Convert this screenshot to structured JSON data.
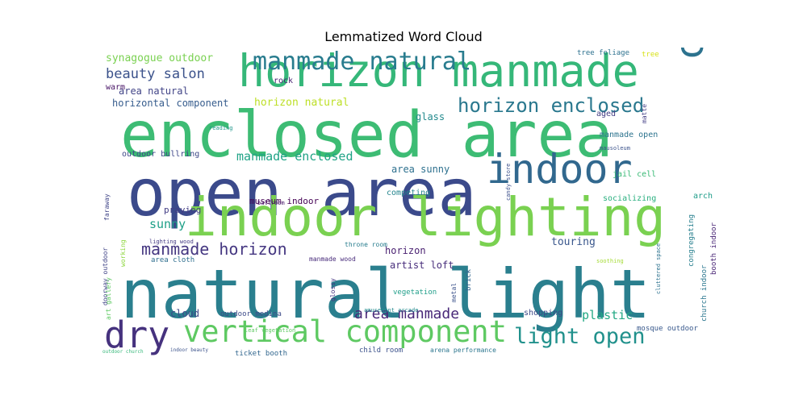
{
  "chart_data": {
    "type": "wordcloud",
    "title": "Lemmatized Word Cloud",
    "words": [
      {
        "text": "natural light",
        "weight": 100,
        "color": "#2a7f8e",
        "orient": "h"
      },
      {
        "text": "open area",
        "weight": 96,
        "color": "#3b4a8b",
        "orient": "h"
      },
      {
        "text": "enclosed area",
        "weight": 94,
        "color": "#3dbc74",
        "orient": "h"
      },
      {
        "text": "indoor lighting",
        "weight": 80,
        "color": "#7ad151",
        "orient": "h"
      },
      {
        "text": "horizon manmade",
        "weight": 66,
        "color": "#35b779",
        "orient": "h"
      },
      {
        "text": "indoor",
        "weight": 60,
        "color": "#31688e",
        "orient": "h"
      },
      {
        "text": "cloth",
        "weight": 58,
        "color": "#2c728e",
        "orient": "v"
      },
      {
        "text": "dry",
        "weight": 54,
        "color": "#46327e",
        "orient": "h"
      },
      {
        "text": "vertical component",
        "weight": 44,
        "color": "#5ec962",
        "orient": "h"
      },
      {
        "text": "manmade natural",
        "weight": 36,
        "color": "#287c8e",
        "orient": "h"
      },
      {
        "text": "light open",
        "weight": 32,
        "color": "#21918c",
        "orient": "h"
      },
      {
        "text": "horizon enclosed",
        "weight": 28,
        "color": "#2a788e",
        "orient": "h"
      },
      {
        "text": "manmade horizon",
        "weight": 24,
        "color": "#453781",
        "orient": "h"
      },
      {
        "text": "area manmade",
        "weight": 22,
        "color": "#482878",
        "orient": "h"
      },
      {
        "text": "beauty salon",
        "weight": 20,
        "color": "#3b528b",
        "orient": "h"
      },
      {
        "text": "manmade enclosed",
        "weight": 18,
        "color": "#20a386",
        "orient": "h"
      },
      {
        "text": "synagogue outdoor",
        "weight": 15,
        "color": "#7ad151",
        "orient": "h"
      },
      {
        "text": "horizon natural",
        "weight": 15,
        "color": "#bddf26",
        "orient": "h"
      },
      {
        "text": "area natural",
        "weight": 14,
        "color": "#414487",
        "orient": "h"
      },
      {
        "text": "horizontal component",
        "weight": 14,
        "color": "#365c8d",
        "orient": "h"
      },
      {
        "text": "sunny",
        "weight": 18,
        "color": "#1fa088",
        "orient": "h"
      },
      {
        "text": "plastic",
        "weight": 18,
        "color": "#22a884",
        "orient": "h"
      },
      {
        "text": "touring",
        "weight": 16,
        "color": "#39568c",
        "orient": "h"
      },
      {
        "text": "horizon",
        "weight": 15,
        "color": "#481f70",
        "orient": "h"
      },
      {
        "text": "artist loft",
        "weight": 14,
        "color": "#472d7b",
        "orient": "h"
      },
      {
        "text": "area sunny",
        "weight": 14,
        "color": "#2d708e",
        "orient": "h"
      },
      {
        "text": "glass",
        "weight": 14,
        "color": "#238a8d",
        "orient": "h"
      },
      {
        "text": "cloud",
        "weight": 14,
        "color": "#3e4989",
        "orient": "h"
      },
      {
        "text": "rock",
        "weight": 12,
        "color": "#482173",
        "orient": "h"
      },
      {
        "text": "warm",
        "weight": 12,
        "color": "#471365",
        "orient": "h"
      },
      {
        "text": "praying",
        "weight": 13,
        "color": "#433e85",
        "orient": "h"
      },
      {
        "text": "outdoor bullring",
        "weight": 12,
        "color": "#3f4889",
        "orient": "h"
      },
      {
        "text": "museum indoor",
        "weight": 13,
        "color": "#440154",
        "orient": "h"
      },
      {
        "text": "area cloth",
        "weight": 11,
        "color": "#2e6e8e",
        "orient": "h"
      },
      {
        "text": "vegetation",
        "weight": 11,
        "color": "#1f9e89",
        "orient": "h"
      },
      {
        "text": "competing",
        "weight": 12,
        "color": "#25858e",
        "orient": "h"
      },
      {
        "text": "socializing",
        "weight": 12,
        "color": "#29af7f",
        "orient": "h"
      },
      {
        "text": "jail cell",
        "weight": 12,
        "color": "#3aba76",
        "orient": "h"
      },
      {
        "text": "manmade open",
        "weight": 12,
        "color": "#2c738e",
        "orient": "h"
      },
      {
        "text": "aged",
        "weight": 12,
        "color": "#433d84",
        "orient": "h"
      },
      {
        "text": "tree foliage",
        "weight": 11,
        "color": "#2d718e",
        "orient": "h"
      },
      {
        "text": "tree",
        "weight": 11,
        "color": "#d8e219",
        "orient": "h"
      },
      {
        "text": "arch",
        "weight": 12,
        "color": "#1e9c89",
        "orient": "h"
      },
      {
        "text": "mosque outdoor",
        "weight": 11,
        "color": "#38588c",
        "orient": "h"
      },
      {
        "text": "ticket booth",
        "weight": 11,
        "color": "#31668e",
        "orient": "h"
      },
      {
        "text": "child room",
        "weight": 11,
        "color": "#3b518b",
        "orient": "h"
      },
      {
        "text": "arena performance",
        "weight": 10,
        "color": "#2b758e",
        "orient": "h"
      },
      {
        "text": "shopping",
        "weight": 12,
        "color": "#3e4a89",
        "orient": "h"
      },
      {
        "text": "amusement arcade",
        "weight": 9,
        "color": "#23898e",
        "orient": "h"
      },
      {
        "text": "outdoor medina",
        "weight": 11,
        "color": "#3e4c8a",
        "orient": "h"
      },
      {
        "text": "manmade wood",
        "weight": 10,
        "color": "#472a7a",
        "orient": "h"
      },
      {
        "text": "throne room",
        "weight": 10,
        "color": "#287d8e",
        "orient": "h"
      },
      {
        "text": "lighting wood",
        "weight": 9,
        "color": "#443a83",
        "orient": "h"
      },
      {
        "text": "ballroom",
        "weight": 9,
        "color": "#481a6c",
        "orient": "h"
      },
      {
        "text": "reading",
        "weight": 9,
        "color": "#1f968b",
        "orient": "h"
      },
      {
        "text": "soothing",
        "weight": 9,
        "color": "#a5db36",
        "orient": "h"
      },
      {
        "text": "glossy",
        "weight": 10,
        "color": "#453581",
        "orient": "v"
      },
      {
        "text": "metal",
        "weight": 10,
        "color": "#3b528b",
        "orient": "v"
      },
      {
        "text": "brick",
        "weight": 11,
        "color": "#32648e",
        "orient": "v"
      },
      {
        "text": "doorway outdoor",
        "weight": 10,
        "color": "#414487",
        "orient": "v"
      },
      {
        "text": "faraway",
        "weight": 10,
        "color": "#404588",
        "orient": "v"
      },
      {
        "text": "working",
        "weight": 10,
        "color": "#90d743",
        "orient": "v"
      },
      {
        "text": "art gallery",
        "weight": 10,
        "color": "#5ec962",
        "orient": "v"
      },
      {
        "text": "congregating",
        "weight": 11,
        "color": "#277f8e",
        "orient": "v"
      },
      {
        "text": "booth indoor",
        "weight": 11,
        "color": "#482475",
        "orient": "v"
      },
      {
        "text": "church indoor",
        "weight": 11,
        "color": "#2a768e",
        "orient": "v"
      },
      {
        "text": "cluttered space",
        "weight": 9,
        "color": "#2c728e",
        "orient": "v"
      },
      {
        "text": "matte",
        "weight": 10,
        "color": "#433e85",
        "orient": "v"
      },
      {
        "text": "candy store",
        "weight": 9,
        "color": "#3c508b",
        "orient": "v"
      },
      {
        "text": "mausoleum",
        "weight": 8,
        "color": "#3b528b",
        "orient": "h"
      },
      {
        "text": "leaf vegetation",
        "weight": 8,
        "color": "#5ec962",
        "orient": "h"
      },
      {
        "text": "outdoor church",
        "weight": 7,
        "color": "#35b779",
        "orient": "h"
      },
      {
        "text": "indoor beauty",
        "weight": 7,
        "color": "#3b528b",
        "orient": "h"
      }
    ]
  }
}
